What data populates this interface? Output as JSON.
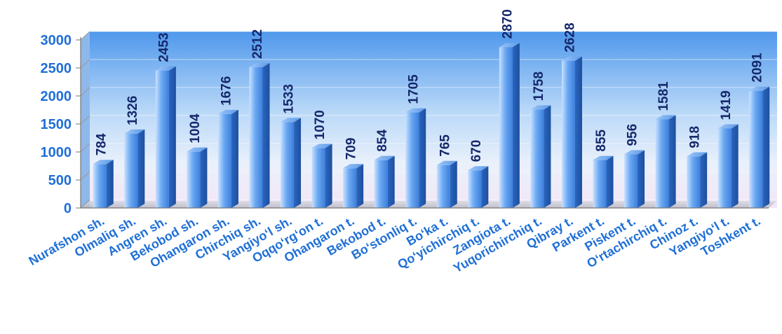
{
  "chart_data": {
    "type": "bar",
    "title": "",
    "xlabel": "",
    "ylabel": "",
    "ylim": [
      0,
      3000
    ],
    "yticks": [
      0,
      500,
      1000,
      1500,
      2000,
      2500,
      3000
    ],
    "grid": true,
    "legend": "none",
    "categories": [
      "Nurafshon sh.",
      "Olmaliq sh.",
      "Angren sh.",
      "Bekobod sh.",
      "Ohangaron sh.",
      "Chirchiq sh.",
      "Yangiyo‘l sh.",
      "Oqqo‘rg‘on t.",
      "Ohangaron t.",
      "Bekobod t.",
      "Bo‘stonliq t.",
      "Bo‘ka t.",
      "Qo‘yichirchiq t.",
      "Zangiota t.",
      "Yuqorichirchiq t.",
      "Qibray t.",
      "Parkent t.",
      "Piskent t.",
      "O‘rtachirchiq t.",
      "Chinoz t.",
      "Yangiyo‘l t.",
      "Toshkent t."
    ],
    "values": [
      784,
      1326,
      2453,
      1004,
      1676,
      2512,
      1533,
      1070,
      709,
      854,
      1705,
      765,
      670,
      2870,
      1758,
      2628,
      855,
      956,
      1581,
      918,
      1419,
      2091
    ],
    "colors": {
      "bar_light": "#c9e1ff",
      "bar_mid": "#6aa8f2",
      "bar_dark": "#2766c4",
      "tick_text": "#1f6fd6",
      "value_text": "#15286a",
      "wall_top": "#4f98ec",
      "wall_bottom": "#f3e6f7"
    }
  }
}
